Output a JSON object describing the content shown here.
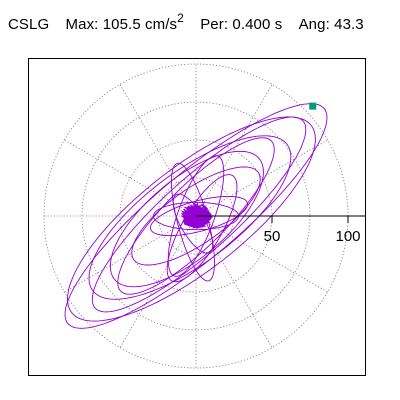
{
  "header": {
    "station": "CSLG",
    "max_label": "Max:",
    "max_value": "105.5",
    "max_unit": "cm/s",
    "max_unit_exp": "2",
    "per_label": "Per:",
    "per_value": "0.400 s",
    "ang_label": "Ang:",
    "ang_value": "43.3"
  },
  "chart_data": {
    "type": "scatter",
    "title": "CSLG  Max: 105.5 cm/s²  Per: 0.400 s  Ang: 43.3",
    "projection": "polar orbit (x-y particle motion)",
    "r_max": 100,
    "rings": [
      25,
      50,
      75,
      100
    ],
    "spokes_deg": [
      0,
      30,
      60,
      90,
      120,
      150,
      180,
      210,
      240,
      270,
      300,
      330
    ],
    "radial_tick_labels": [
      "50",
      "100"
    ],
    "grid": true,
    "max_point": {
      "x": 76.8,
      "y": 72.3,
      "r": 105.5,
      "angle_deg": 43.3
    },
    "orbit": {
      "color": "#9400d3",
      "principal_angle_deg": 40,
      "description": "elliptical particle-motion loops elongated along the principal direction with a dense core near the origin",
      "loops": [
        {
          "a": 110,
          "b": 28,
          "rot": 40,
          "cx": 0,
          "cy": 0
        },
        {
          "a": 100,
          "b": 34,
          "rot": 38,
          "cx": -3,
          "cy": -2
        },
        {
          "a": 92,
          "b": 24,
          "rot": 42,
          "cx": 2,
          "cy": 1
        },
        {
          "a": 80,
          "b": 30,
          "rot": 37,
          "cx": -4,
          "cy": -1
        },
        {
          "a": 70,
          "b": 20,
          "rot": 45,
          "cx": 0,
          "cy": 0
        },
        {
          "a": 62,
          "b": 26,
          "rot": 40,
          "cx": -6,
          "cy": -2
        },
        {
          "a": 50,
          "b": 18,
          "rot": 35,
          "cx": 0,
          "cy": 0
        },
        {
          "a": 42,
          "b": 12,
          "rot": 70,
          "cx": 0,
          "cy": 0
        },
        {
          "a": 40,
          "b": 10,
          "rot": 105,
          "cx": -2,
          "cy": -4
        },
        {
          "a": 33,
          "b": 10,
          "rot": 15,
          "cx": 2,
          "cy": 0
        },
        {
          "a": 28,
          "b": 9,
          "rot": 0,
          "cx": 0,
          "cy": 0
        },
        {
          "a": 22,
          "b": 8,
          "rot": 120,
          "cx": -2,
          "cy": -5
        },
        {
          "a": 40,
          "b": 13,
          "rot": 60,
          "cx": 4,
          "cy": -8
        }
      ],
      "dense_core": {
        "radius": 9
      }
    }
  }
}
